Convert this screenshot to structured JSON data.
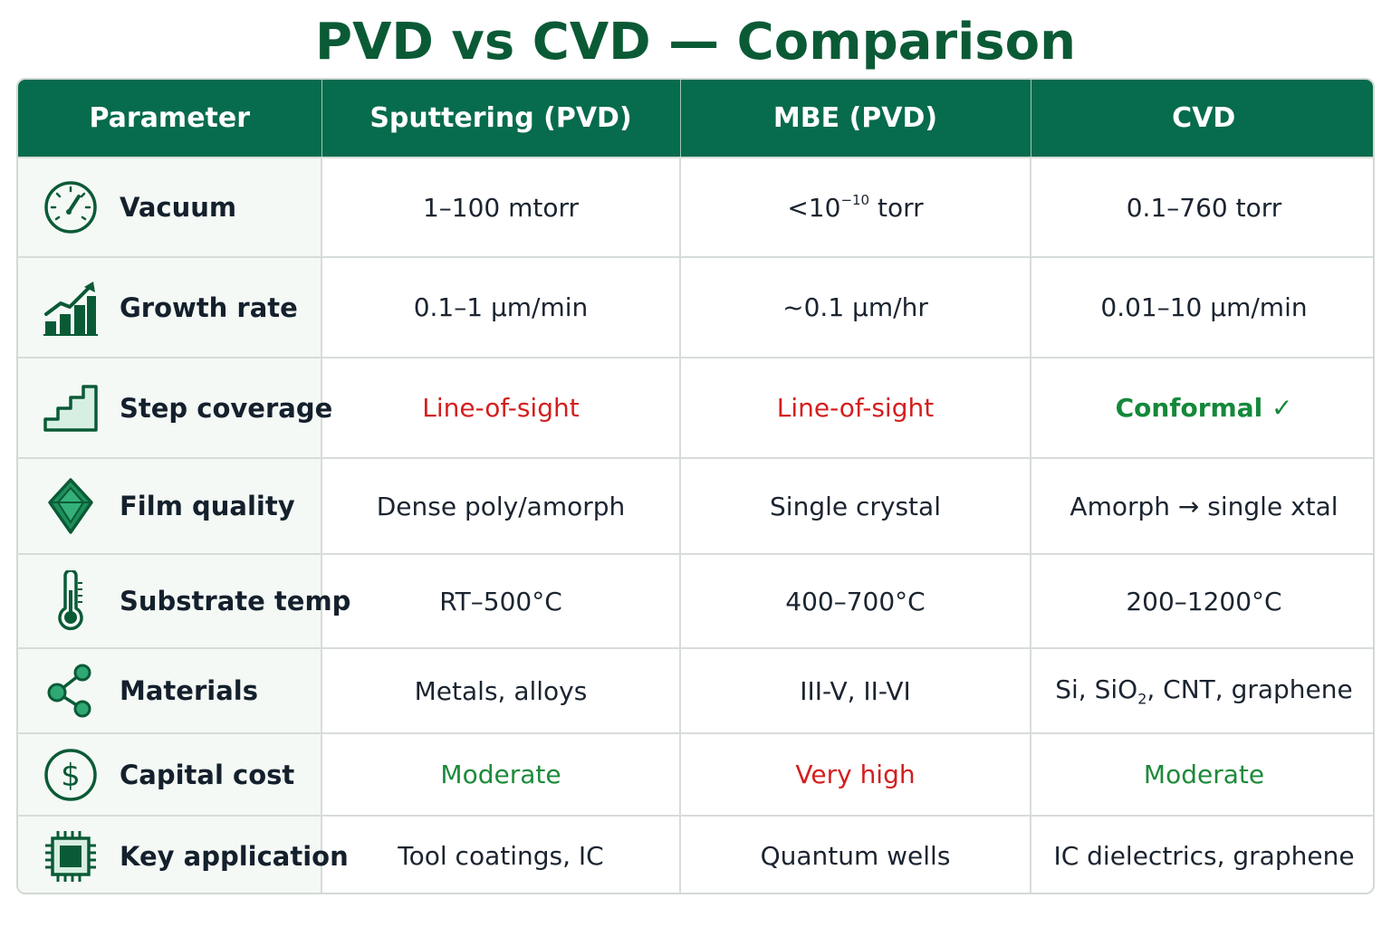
{
  "title": "PVD vs CVD — Comparison",
  "headers": [
    "Parameter",
    "Sputtering (PVD)",
    "MBE (PVD)",
    "CVD"
  ],
  "colors": {
    "header_bg": "#076b4d",
    "title": "#0b5a36",
    "bad": "#d41e1e",
    "good": "#1d8a3a",
    "param_bg": "#f4f9f6"
  },
  "rows": [
    {
      "param": "Vacuum",
      "icon": "gauge-icon",
      "sputtering": "1–100 mtorr",
      "mbe_prefix": "<10",
      "mbe_sup": "−10",
      "mbe_suffix": " torr",
      "cvd": "0.1–760 torr"
    },
    {
      "param": "Growth rate",
      "icon": "growth-chart-icon",
      "sputtering": "0.1–1 µm/min",
      "mbe": "~0.1 µm/hr",
      "cvd": "0.01–10 µm/min"
    },
    {
      "param": "Step coverage",
      "icon": "stairs-icon",
      "sputtering": "Line-of-sight",
      "mbe": "Line-of-sight",
      "cvd": "Conformal ✓"
    },
    {
      "param": "Film quality",
      "icon": "crystal-icon",
      "sputtering": "Dense poly/amorph",
      "mbe": "Single crystal",
      "cvd": "Amorph → single xtal"
    },
    {
      "param": "Substrate temp",
      "icon": "thermometer-icon",
      "sputtering": "RT–500°C",
      "mbe": "400–700°C",
      "cvd": "200–1200°C"
    },
    {
      "param": "Materials",
      "icon": "molecule-icon",
      "sputtering": "Metals, alloys",
      "mbe": "III-V, II-VI",
      "cvd_prefix": "Si, SiO",
      "cvd_sub": "2",
      "cvd_suffix": ", CNT, graphene"
    },
    {
      "param": "Capital cost",
      "icon": "dollar-icon",
      "sputtering": "Moderate",
      "mbe": "Very high",
      "cvd": "Moderate"
    },
    {
      "param": "Key application",
      "icon": "chip-icon",
      "sputtering": "Tool coatings, IC",
      "mbe": "Quantum wells",
      "cvd": "IC dielectrics, graphene"
    }
  ]
}
